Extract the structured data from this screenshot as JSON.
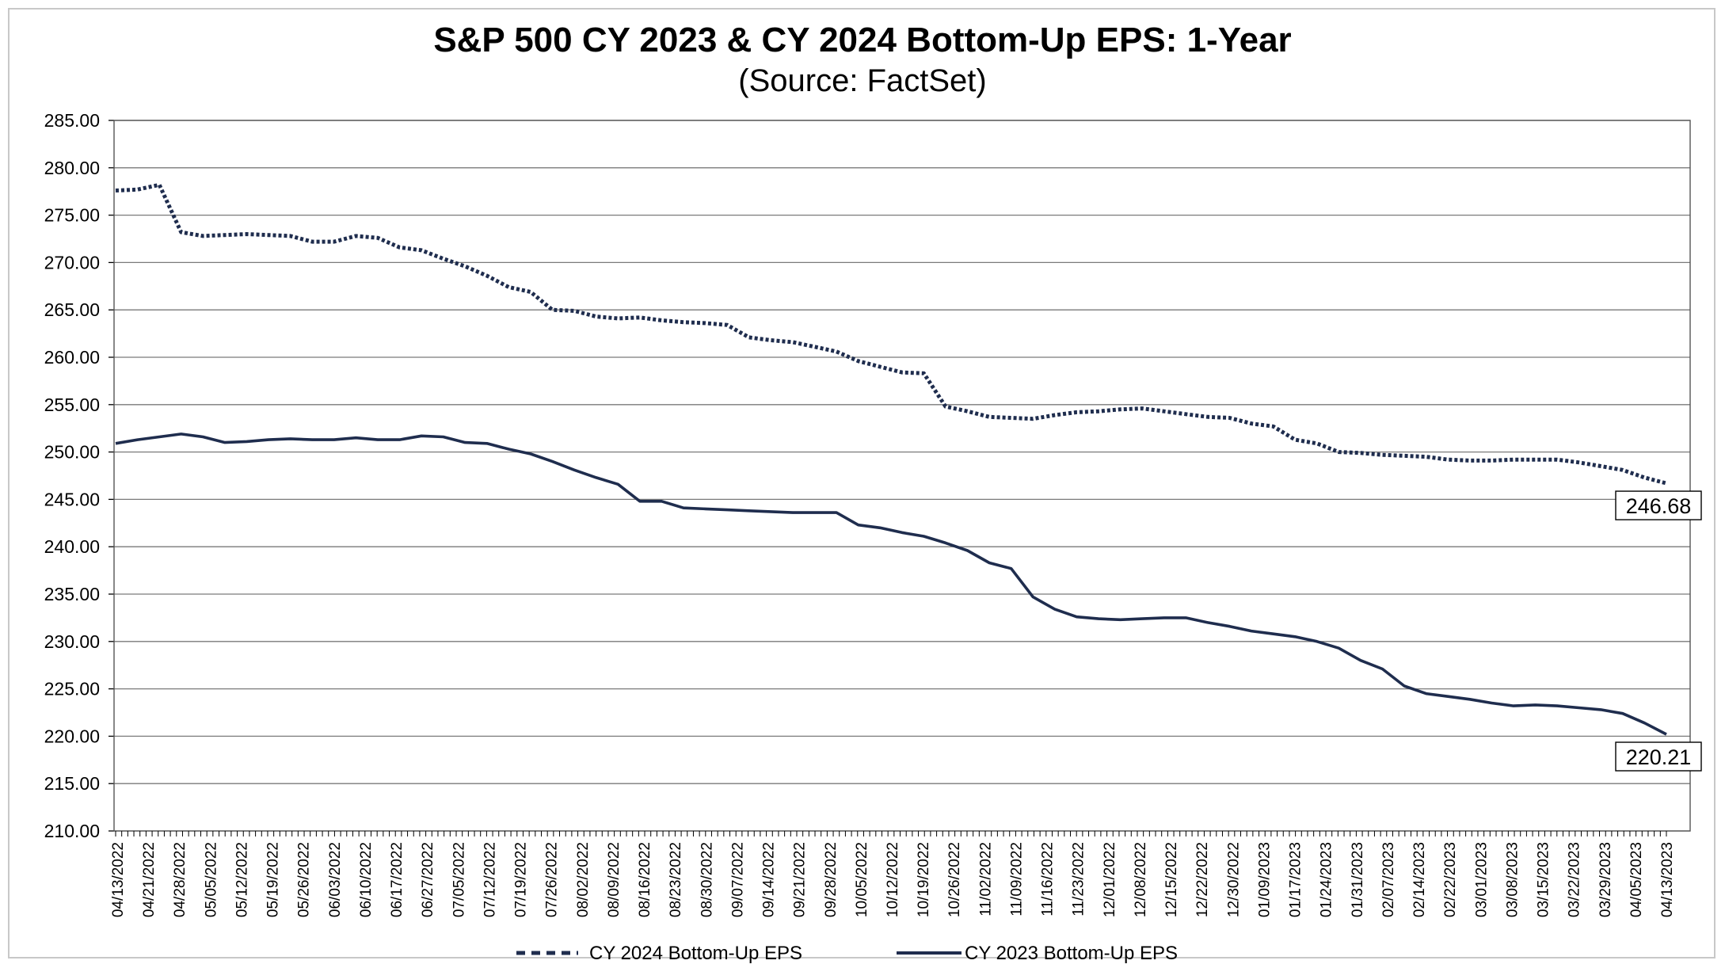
{
  "chart_data": {
    "type": "line",
    "title": "S&P 500 CY 2023 & CY 2024 Bottom-Up EPS: 1-Year",
    "subtitle": "(Source: FactSet)",
    "xlabel": "",
    "ylabel": "",
    "ylim": [
      210,
      285
    ],
    "y_ticks": [
      "210.00",
      "215.00",
      "220.00",
      "225.00",
      "230.00",
      "235.00",
      "240.00",
      "245.00",
      "250.00",
      "255.00",
      "260.00",
      "265.00",
      "270.00",
      "275.00",
      "280.00",
      "285.00"
    ],
    "x_ticks": [
      "04/13/2022",
      "04/21/2022",
      "04/28/2022",
      "05/05/2022",
      "05/12/2022",
      "05/19/2022",
      "05/26/2022",
      "06/03/2022",
      "06/10/2022",
      "06/17/2022",
      "06/27/2022",
      "07/05/2022",
      "07/12/2022",
      "07/19/2022",
      "07/26/2022",
      "08/02/2022",
      "08/09/2022",
      "08/16/2022",
      "08/23/2022",
      "08/30/2022",
      "09/07/2022",
      "09/14/2022",
      "09/21/2022",
      "09/28/2022",
      "10/05/2022",
      "10/12/2022",
      "10/19/2022",
      "10/26/2022",
      "11/02/2022",
      "11/09/2022",
      "11/16/2022",
      "11/23/2022",
      "12/01/2022",
      "12/08/2022",
      "12/15/2022",
      "12/22/2022",
      "12/30/2022",
      "01/09/2023",
      "01/17/2023",
      "01/24/2023",
      "01/31/2023",
      "02/07/2023",
      "02/14/2023",
      "02/22/2023",
      "03/01/2023",
      "03/08/2023",
      "03/15/2023",
      "03/22/2023",
      "03/29/2023",
      "04/05/2023",
      "04/13/2023"
    ],
    "grid": true,
    "legend_position": "bottom",
    "line_color": "#1f2d4e",
    "series": [
      {
        "name": "CY 2024 Bottom-Up EPS",
        "style": "dashed",
        "values": [
          277.6,
          277.7,
          278.2,
          273.2,
          272.8,
          272.9,
          273.0,
          272.9,
          272.8,
          272.2,
          272.2,
          272.8,
          272.6,
          271.6,
          271.3,
          270.4,
          269.6,
          268.6,
          267.4,
          266.9,
          265.0,
          264.9,
          264.3,
          264.1,
          264.2,
          263.9,
          263.7,
          263.6,
          263.4,
          262.1,
          261.8,
          261.6,
          261.1,
          260.6,
          259.6,
          259.0,
          258.4,
          258.3,
          254.8,
          254.3,
          253.7,
          253.6,
          253.5,
          253.9,
          254.2,
          254.3,
          254.5,
          254.6,
          254.3,
          254.0,
          253.7,
          253.6,
          253.0,
          252.7,
          251.3,
          250.9,
          250.0,
          249.9,
          249.7,
          249.6,
          249.5,
          249.2,
          249.1,
          249.1,
          249.2,
          249.2,
          249.2,
          248.9,
          248.5,
          248.1,
          247.3,
          246.7
        ]
      },
      {
        "name": "CY 2023 Bottom-Up EPS",
        "style": "solid",
        "values": [
          250.9,
          251.3,
          251.6,
          251.9,
          251.6,
          251.0,
          251.1,
          251.3,
          251.4,
          251.3,
          251.3,
          251.5,
          251.3,
          251.3,
          251.7,
          251.6,
          251.0,
          250.9,
          250.3,
          249.8,
          249.0,
          248.1,
          247.3,
          246.6,
          244.8,
          244.8,
          244.1,
          244.0,
          243.9,
          243.8,
          243.7,
          243.6,
          243.6,
          243.6,
          242.3,
          242.0,
          241.5,
          241.1,
          240.4,
          239.6,
          238.3,
          237.7,
          234.7,
          233.4,
          232.6,
          232.4,
          232.3,
          232.4,
          232.5,
          232.5,
          232.0,
          231.6,
          231.1,
          230.8,
          230.5,
          230.0,
          229.3,
          228.0,
          227.1,
          225.3,
          224.5,
          224.2,
          223.9,
          223.5,
          223.2,
          223.3,
          223.2,
          223.0,
          222.8,
          222.4,
          221.4,
          220.2
        ]
      }
    ],
    "end_labels": [
      "246.68",
      "220.21"
    ]
  }
}
